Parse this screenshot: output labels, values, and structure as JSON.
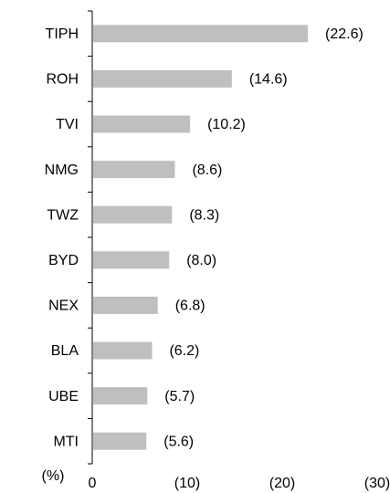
{
  "chart_data": {
    "type": "hbar",
    "categories": [
      "TIPH",
      "ROH",
      "TVI",
      "NMG",
      "TWZ",
      "BYD",
      "NEX",
      "BLA",
      "UBE",
      "MTI"
    ],
    "values": [
      -22.6,
      -14.6,
      -10.2,
      -8.6,
      -8.3,
      -8.0,
      -6.8,
      -6.2,
      -5.7,
      -5.6
    ],
    "value_labels": [
      "(22.6)",
      "(14.6)",
      "(10.2)",
      "(8.6)",
      "(8.3)",
      "(8.0)",
      "(6.8)",
      "(6.2)",
      "(5.7)",
      "(5.6)"
    ],
    "color": "#bfbfbf",
    "xlabel": "(%)",
    "xlim": [
      0,
      -30
    ],
    "xticks": [
      0,
      {
        "value": -10,
        "label": "(10)"
      },
      {
        "value": -20,
        "label": "(20)"
      },
      {
        "value": -30,
        "label": "(30)"
      }
    ]
  }
}
